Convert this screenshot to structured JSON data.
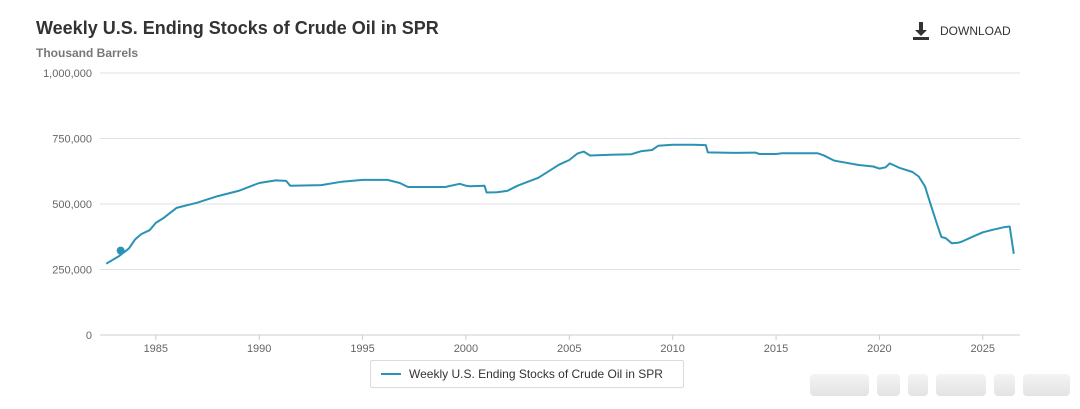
{
  "header": {
    "title": "Weekly U.S. Ending Stocks of Crude Oil in SPR",
    "subtitle": "Thousand Barrels",
    "download_label": "DOWNLOAD",
    "download_icon": "download-icon"
  },
  "legend": {
    "label": "Weekly U.S. Ending Stocks of Crude Oil in SPR"
  },
  "colors": {
    "series": "#2a93b5",
    "grid": "#e0e0e0",
    "axis_text": "#666666"
  },
  "chart_data": {
    "type": "line",
    "title": "Weekly U.S. Ending Stocks of Crude Oil in SPR",
    "ylabel": "Thousand Barrels",
    "xlim": [
      1982.3,
      2026.8
    ],
    "ylim": [
      0,
      1000000
    ],
    "x_ticks": [
      1985,
      1990,
      1995,
      2000,
      2005,
      2010,
      2015,
      2020,
      2025
    ],
    "x_tick_labels": [
      "1985",
      "1990",
      "1995",
      "2000",
      "2005",
      "2010",
      "2015",
      "2020",
      "2025"
    ],
    "y_ticks": [
      0,
      250000,
      500000,
      750000,
      1000000
    ],
    "y_tick_labels": [
      "0",
      "250,000",
      "500,000",
      "750,000",
      "1,000,000"
    ],
    "grid": true,
    "legend_position": "bottom-center",
    "series": [
      {
        "name": "Weekly U.S. Ending Stocks of Crude Oil in SPR",
        "x": [
          1982.6,
          1983.2,
          1983.7,
          1984.0,
          1984.3,
          1984.7,
          1985.0,
          1985.4,
          1986.0,
          1987.0,
          1988.0,
          1989.0,
          1990.0,
          1990.8,
          1991.3,
          1991.5,
          1993.0,
          1994.0,
          1995.0,
          1996.2,
          1996.8,
          1997.2,
          1999.0,
          1999.7,
          2000.0,
          2000.2,
          2000.9,
          2001.0,
          2001.5,
          2002.0,
          2002.5,
          2003.0,
          2003.5,
          2004.0,
          2004.5,
          2005.0,
          2005.4,
          2005.7,
          2006.0,
          2007.0,
          2008.0,
          2008.5,
          2009.0,
          2009.3,
          2010.0,
          2011.0,
          2011.6,
          2011.7,
          2013.0,
          2014.0,
          2014.2,
          2015.0,
          2015.3,
          2017.0,
          2017.3,
          2017.8,
          2018.0,
          2019.0,
          2019.7,
          2020.0,
          2020.3,
          2020.5,
          2021.0,
          2021.6,
          2021.9,
          2022.2,
          2022.5,
          2022.8,
          2023.0,
          2023.2,
          2023.5,
          2023.8,
          2024.0,
          2024.5,
          2025.0,
          2025.5,
          2026.0,
          2026.3,
          2026.5
        ],
        "values": [
          272000,
          300000,
          330000,
          365000,
          385000,
          400000,
          428000,
          448000,
          485000,
          505000,
          530000,
          550000,
          580000,
          590000,
          588000,
          570000,
          572000,
          585000,
          592000,
          592000,
          580000,
          565000,
          565000,
          577000,
          570000,
          568000,
          570000,
          544000,
          545000,
          550000,
          570000,
          585000,
          600000,
          625000,
          650000,
          668000,
          693000,
          700000,
          685000,
          688000,
          690000,
          702000,
          706000,
          722000,
          726000,
          726000,
          725000,
          697000,
          695000,
          696000,
          691000,
          691000,
          694000,
          694000,
          686000,
          666000,
          663000,
          649000,
          643000,
          635000,
          640000,
          655000,
          637000,
          622000,
          605000,
          568000,
          493000,
          420000,
          374000,
          370000,
          350000,
          352000,
          357000,
          375000,
          392000,
          402000,
          411000,
          414000,
          310000
        ]
      }
    ],
    "marker": {
      "x": 1983.3,
      "value": 322000
    }
  }
}
